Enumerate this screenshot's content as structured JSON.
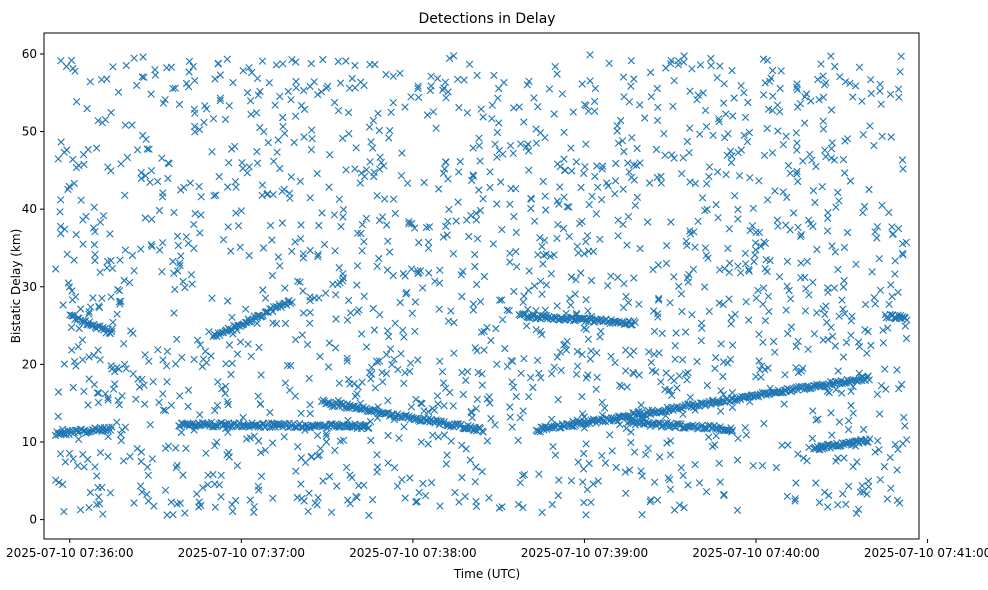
{
  "chart_data": {
    "type": "scatter",
    "title": "Detections in Delay",
    "xlabel": "Time (UTC)",
    "ylabel": "Bistatic Delay (km)",
    "xlim": [
      "2025-07-10 07:35:51",
      "2025-07-10 07:40:57"
    ],
    "ylim": [
      -2.5,
      62.7
    ],
    "x_ticks": [
      "2025-07-10 07:36:00",
      "2025-07-10 07:37:00",
      "2025-07-10 07:38:00",
      "2025-07-10 07:39:00",
      "2025-07-10 07:40:00",
      "2025-07-10 07:41:00"
    ],
    "y_ticks": [
      0,
      10,
      20,
      30,
      40,
      50,
      60
    ],
    "grid": false,
    "marker": "x",
    "color": "#1f77b4",
    "series": [
      {
        "x_start": "2025-07-10 07:35:55",
        "x_end": "2025-07-10 07:40:53",
        "points_per_second": 6,
        "clutter_y_range": [
          0.5,
          60
        ],
        "tracks": [
          {
            "x_start": "2025-07-10 07:35:55",
            "x_end": "2025-07-10 07:36:15",
            "y_start": 11.0,
            "y_end": 11.8
          },
          {
            "x_start": "2025-07-10 07:36:00",
            "x_end": "2025-07-10 07:36:15",
            "y_start": 26.3,
            "y_end": 24.0
          },
          {
            "x_start": "2025-07-10 07:36:38",
            "x_end": "2025-07-10 07:37:45",
            "y_start": 12.3,
            "y_end": 12.0
          },
          {
            "x_start": "2025-07-10 07:36:50",
            "x_end": "2025-07-10 07:37:18",
            "y_start": 23.5,
            "y_end": 28.3
          },
          {
            "x_start": "2025-07-10 07:37:28",
            "x_end": "2025-07-10 07:38:25",
            "y_start": 15.2,
            "y_end": 11.5
          },
          {
            "x_start": "2025-07-10 07:38:37",
            "x_end": "2025-07-10 07:39:18",
            "y_start": 26.3,
            "y_end": 25.3
          },
          {
            "x_start": "2025-07-10 07:38:43",
            "x_end": "2025-07-10 07:40:40",
            "y_start": 11.5,
            "y_end": 18.3
          },
          {
            "x_start": "2025-07-10 07:39:15",
            "x_end": "2025-07-10 07:39:52",
            "y_start": 12.5,
            "y_end": 11.7
          },
          {
            "x_start": "2025-07-10 07:40:20",
            "x_end": "2025-07-10 07:40:40",
            "y_start": 9.2,
            "y_end": 10.2
          },
          {
            "x_start": "2025-07-10 07:40:45",
            "x_end": "2025-07-10 07:40:53",
            "y_start": 26.2,
            "y_end": 26.0
          }
        ]
      }
    ]
  }
}
